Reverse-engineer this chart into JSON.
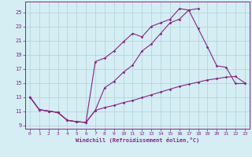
{
  "xlabel": "Windchill (Refroidissement éolien,°C)",
  "bg_color": "#d4eef4",
  "grid_color": "#b0d0d8",
  "line_color": "#882288",
  "xlim": [
    -0.5,
    23.5
  ],
  "ylim": [
    8.5,
    26.5
  ],
  "yticks": [
    9,
    11,
    13,
    15,
    17,
    19,
    21,
    23,
    25
  ],
  "xticks": [
    0,
    1,
    2,
    3,
    4,
    5,
    6,
    7,
    8,
    9,
    10,
    11,
    12,
    13,
    14,
    15,
    16,
    17,
    18,
    19,
    20,
    21,
    22,
    23
  ],
  "line1_x": [
    0,
    1,
    2,
    3,
    4,
    5,
    6,
    7,
    8,
    9,
    10,
    11,
    12,
    13,
    14,
    15,
    16,
    17,
    18
  ],
  "line1_y": [
    13.0,
    11.2,
    11.0,
    10.8,
    9.7,
    9.5,
    9.4,
    11.1,
    14.3,
    15.2,
    16.5,
    17.5,
    19.5,
    20.5,
    22.0,
    23.5,
    24.0,
    25.3,
    25.5
  ],
  "line2_x": [
    0,
    1,
    2,
    3,
    4,
    5,
    6,
    7,
    8,
    9,
    10,
    11,
    12,
    13,
    14,
    15,
    16,
    17,
    18,
    19,
    20,
    21,
    22,
    23
  ],
  "line2_y": [
    13.0,
    11.2,
    11.0,
    10.8,
    9.7,
    9.5,
    9.4,
    18.0,
    18.5,
    19.5,
    20.8,
    22.0,
    21.5,
    23.0,
    23.5,
    24.0,
    25.5,
    25.3,
    22.7,
    20.1,
    17.4,
    17.2,
    14.9,
    14.9
  ],
  "line3_x": [
    0,
    1,
    2,
    3,
    4,
    5,
    6,
    7,
    8,
    9,
    10,
    11,
    12,
    13,
    14,
    15,
    16,
    17,
    18,
    19,
    20,
    21,
    22,
    23
  ],
  "line3_y": [
    13.0,
    11.2,
    11.0,
    10.8,
    9.7,
    9.5,
    9.4,
    11.1,
    11.5,
    11.8,
    12.2,
    12.5,
    12.9,
    13.3,
    13.7,
    14.1,
    14.5,
    14.8,
    15.1,
    15.4,
    15.6,
    15.8,
    15.9,
    15.0
  ],
  "marker": "D",
  "markersize": 1.8,
  "linewidth": 0.8,
  "tick_fontsize": 4.5,
  "xlabel_fontsize": 5.0
}
